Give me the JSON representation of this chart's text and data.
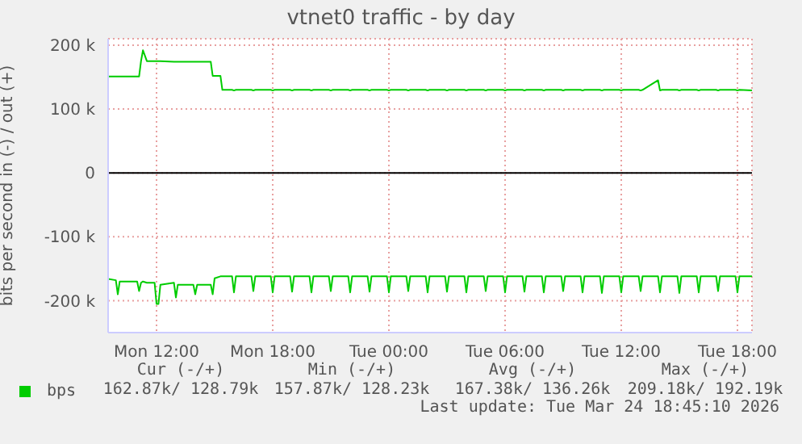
{
  "chart_data": {
    "type": "line",
    "title": "vtnet0 traffic - by day",
    "ylabel": "bits per second in (-) / out (+)",
    "x": [
      "2026-03-23T09:30",
      "2026-03-23T09:54",
      "2026-03-23T10:00",
      "2026-03-23T10:06",
      "2026-03-23T11:00",
      "2026-03-23T11:06",
      "2026-03-23T11:12",
      "2026-03-23T11:18",
      "2026-03-23T11:30",
      "2026-03-23T11:54",
      "2026-03-23T12:00",
      "2026-03-23T12:06",
      "2026-03-23T12:12",
      "2026-03-23T12:54",
      "2026-03-23T13:00",
      "2026-03-23T13:06",
      "2026-03-23T13:54",
      "2026-03-23T14:00",
      "2026-03-23T14:06",
      "2026-03-23T14:48",
      "2026-03-23T14:54",
      "2026-03-23T15:00",
      "2026-03-23T15:18",
      "2026-03-23T15:24",
      "2026-03-23T15:54",
      "2026-03-23T16:00",
      "2026-03-23T16:06",
      "2026-03-23T16:54",
      "2026-03-23T17:00",
      "2026-03-23T17:06",
      "2026-03-23T17:54",
      "2026-03-23T18:00",
      "2026-03-23T18:06",
      "2026-03-23T18:54",
      "2026-03-23T19:00",
      "2026-03-23T19:06",
      "2026-03-23T19:54",
      "2026-03-23T20:00",
      "2026-03-23T20:06",
      "2026-03-23T20:54",
      "2026-03-23T21:00",
      "2026-03-23T21:06",
      "2026-03-23T21:54",
      "2026-03-23T22:00",
      "2026-03-23T22:06",
      "2026-03-23T22:54",
      "2026-03-23T23:00",
      "2026-03-23T23:06",
      "2026-03-23T23:54",
      "2026-03-24T00:00",
      "2026-03-24T00:06",
      "2026-03-24T00:54",
      "2026-03-24T01:00",
      "2026-03-24T01:06",
      "2026-03-24T01:54",
      "2026-03-24T02:00",
      "2026-03-24T02:06",
      "2026-03-24T02:54",
      "2026-03-24T03:00",
      "2026-03-24T03:06",
      "2026-03-24T03:54",
      "2026-03-24T04:00",
      "2026-03-24T04:06",
      "2026-03-24T04:54",
      "2026-03-24T05:00",
      "2026-03-24T05:06",
      "2026-03-24T05:54",
      "2026-03-24T06:00",
      "2026-03-24T06:06",
      "2026-03-24T06:54",
      "2026-03-24T07:00",
      "2026-03-24T07:06",
      "2026-03-24T07:54",
      "2026-03-24T08:00",
      "2026-03-24T08:06",
      "2026-03-24T08:54",
      "2026-03-24T09:00",
      "2026-03-24T09:06",
      "2026-03-24T09:54",
      "2026-03-24T10:00",
      "2026-03-24T10:06",
      "2026-03-24T10:54",
      "2026-03-24T11:00",
      "2026-03-24T11:06",
      "2026-03-24T11:54",
      "2026-03-24T12:00",
      "2026-03-24T12:06",
      "2026-03-24T12:54",
      "2026-03-24T13:00",
      "2026-03-24T13:06",
      "2026-03-24T13:54",
      "2026-03-24T14:00",
      "2026-03-24T14:06",
      "2026-03-24T14:54",
      "2026-03-24T15:00",
      "2026-03-24T15:06",
      "2026-03-24T15:54",
      "2026-03-24T16:00",
      "2026-03-24T16:06",
      "2026-03-24T16:54",
      "2026-03-24T17:00",
      "2026-03-24T17:06",
      "2026-03-24T17:54",
      "2026-03-24T18:00",
      "2026-03-24T18:06",
      "2026-03-24T18:45"
    ],
    "series": [
      {
        "name": "bps",
        "color": "#00cc00",
        "values": [
          151000,
          151000,
          151000,
          151000,
          151000,
          151000,
          175000,
          192000,
          175000,
          175000,
          175000,
          175000,
          175000,
          174000,
          174000,
          174000,
          174000,
          174000,
          174000,
          174000,
          152000,
          152000,
          152000,
          130000,
          130000,
          129000,
          130000,
          130000,
          129000,
          130000,
          130000,
          129000,
          130000,
          130000,
          129000,
          130000,
          130000,
          129000,
          130000,
          130000,
          129000,
          130000,
          130000,
          129000,
          130000,
          130000,
          129000,
          130000,
          130000,
          129000,
          130000,
          130000,
          129000,
          130000,
          130000,
          129000,
          130000,
          130000,
          129000,
          130000,
          130000,
          129000,
          130000,
          130000,
          129000,
          130000,
          130000,
          129000,
          130000,
          130000,
          129000,
          130000,
          130000,
          129000,
          130000,
          130000,
          129000,
          130000,
          130000,
          129000,
          130000,
          130000,
          129000,
          130000,
          130000,
          129000,
          130000,
          130000,
          129000,
          130000,
          145000,
          129000,
          130000,
          130000,
          129000,
          130000,
          130000,
          129000,
          130000,
          130000,
          129000,
          130000,
          130000,
          129000,
          130000,
          129000
        ]
      },
      {
        "color": "#00cc00",
        "values": [
          -166000,
          -168000,
          -190000,
          -170000,
          -170000,
          -185000,
          -172000,
          -170000,
          -172000,
          -172000,
          -205000,
          -205000,
          -175000,
          -172000,
          -195000,
          -175000,
          -175000,
          -190000,
          -175000,
          -175000,
          -190000,
          -165000,
          -162000,
          -162000,
          -162000,
          -187000,
          -162000,
          -162000,
          -185000,
          -162000,
          -162000,
          -187000,
          -162000,
          -162000,
          -186000,
          -162000,
          -162000,
          -187000,
          -162000,
          -162000,
          -185000,
          -162000,
          -162000,
          -187000,
          -162000,
          -162000,
          -186000,
          -162000,
          -162000,
          -187000,
          -162000,
          -162000,
          -185000,
          -162000,
          -162000,
          -187000,
          -162000,
          -162000,
          -186000,
          -162000,
          -162000,
          -187000,
          -162000,
          -162000,
          -185000,
          -162000,
          -162000,
          -187000,
          -162000,
          -162000,
          -186000,
          -162000,
          -162000,
          -187000,
          -162000,
          -162000,
          -185000,
          -162000,
          -162000,
          -187000,
          -162000,
          -162000,
          -188000,
          -162000,
          -162000,
          -187000,
          -162000,
          -162000,
          -185000,
          -162000,
          -162000,
          -187000,
          -162000,
          -162000,
          -188000,
          -162000,
          -162000,
          -187000,
          -162000,
          -162000,
          -185000,
          -162000,
          -162000,
          -187000,
          -162000,
          -162000
        ]
      }
    ],
    "xlim": [
      "2026-03-23T09:30",
      "2026-03-24T18:45"
    ],
    "xticks": [
      {
        "value": "2026-03-23T12:00",
        "label": "Mon 12:00"
      },
      {
        "value": "2026-03-23T18:00",
        "label": "Mon 18:00"
      },
      {
        "value": "2026-03-24T00:00",
        "label": "Tue 00:00"
      },
      {
        "value": "2026-03-24T06:00",
        "label": "Tue 06:00"
      },
      {
        "value": "2026-03-24T12:00",
        "label": "Tue 12:00"
      },
      {
        "value": "2026-03-24T18:00",
        "label": "Tue 18:00"
      }
    ],
    "ylim": [
      -250000,
      210000
    ],
    "yticks": [
      {
        "value": -200000,
        "label": "-200 k"
      },
      {
        "value": -100000,
        "label": "-100 k"
      },
      {
        "value": 0,
        "label": "0"
      },
      {
        "value": 100000,
        "label": "100 k"
      },
      {
        "value": 200000,
        "label": "200 k"
      }
    ],
    "ref_lines": [
      {
        "axis": "y",
        "value": 0,
        "color": "#000000"
      }
    ],
    "grid": true,
    "legend": "bottom left",
    "annotations": [
      "Cur (-/+)",
      "Min (-/+)",
      "Avg (-/+)",
      "Max (-/+)",
      "162.87k/ 128.79k",
      "157.87k/ 128.23k",
      "167.38k/ 136.26k",
      "209.18k/ 192.19k",
      "Last update: Tue Mar 24 18:45:10 2026"
    ]
  }
}
